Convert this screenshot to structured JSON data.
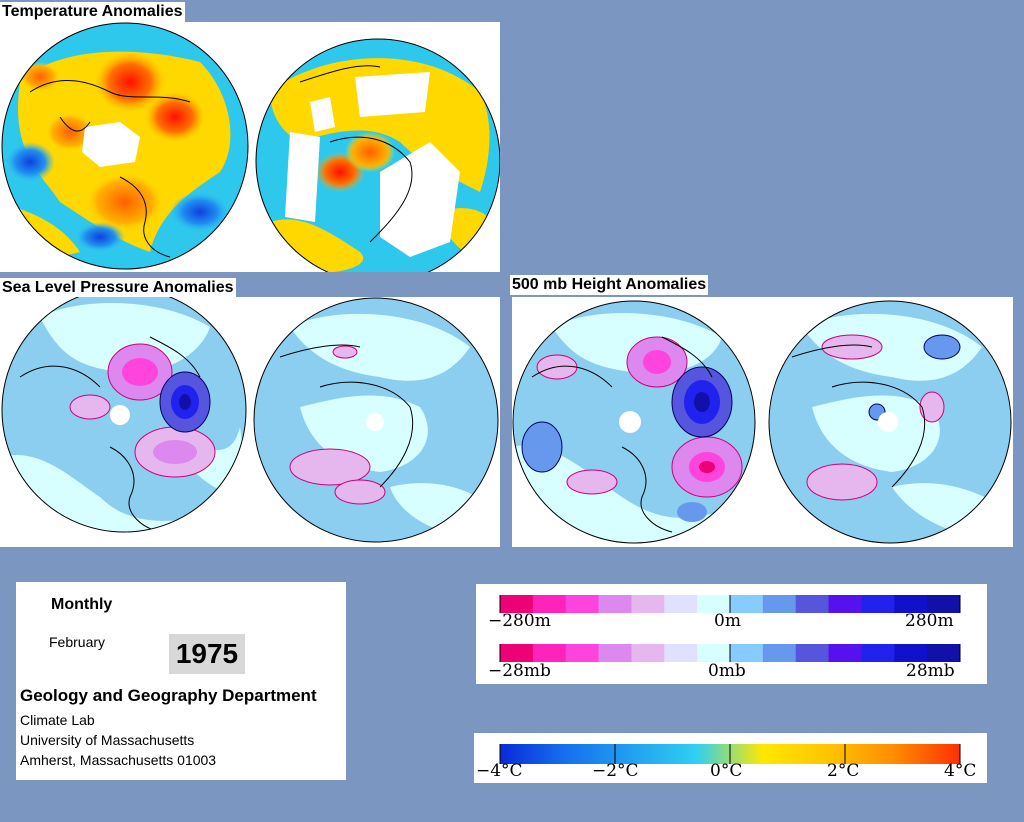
{
  "titles": {
    "temperature": "Temperature Anomalies",
    "slp": "Sea Level Pressure Anomalies",
    "height500": "500 mb Height Anomalies"
  },
  "info": {
    "period": "Monthly",
    "month": "February",
    "year": "1975",
    "department": "Geology and Geography Department",
    "lab": "Climate Lab",
    "university": "University of Massachusetts",
    "address": "Amherst, Massachusetts 01003"
  },
  "legends": {
    "height": {
      "min": "−280m",
      "mid": "0m",
      "max": "280m"
    },
    "pressure": {
      "min": "−28mb",
      "mid": "0mb",
      "max": "28mb"
    },
    "temperature": {
      "t1": "−4°C",
      "t2": "−2°C",
      "t3": "0°C",
      "t4": "2°C",
      "t5": "4°C"
    }
  },
  "colors": {
    "page_bg": "#7b96c0",
    "pressure_scale": [
      "#ee0077",
      "#ff22bb",
      "#ff44dd",
      "#dd88ee",
      "#e6b6ee",
      "#e0e0ff",
      "#d8ffff",
      "#88ccff",
      "#6699ee",
      "#5555dd",
      "#5511ee",
      "#2222ee",
      "#1111cc",
      "#1111aa"
    ],
    "temp_scale": [
      "#0a2ad8",
      "#1670ee",
      "#22a0f0",
      "#30d0f0",
      "#ffe800",
      "#ffc400",
      "#ff8c00",
      "#ff3000"
    ]
  }
}
